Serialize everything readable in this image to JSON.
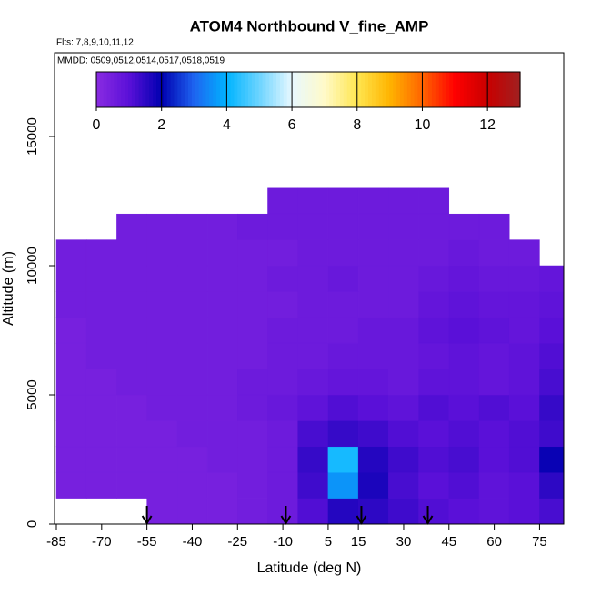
{
  "chart_data": {
    "type": "heatmap",
    "title": "ATOM4 Northbound V_fine_AMP",
    "subtitle": [
      "Flts: 7,8,9,10,11,12",
      "MMDD: 0509,0512,0514,0517,0518,0519"
    ],
    "x_label": "Latitude (deg N)",
    "y_label": "Altitude (m)",
    "xlim": [
      -85.6,
      83
    ],
    "ylim": [
      0,
      18240
    ],
    "xticks": [
      -85,
      -70,
      -55,
      -40,
      -25,
      -10,
      5,
      15,
      30,
      45,
      60,
      75
    ],
    "yticks": [
      0,
      5000,
      10000,
      15000
    ],
    "x_edges": [
      -85,
      -75,
      -65,
      -55,
      -45,
      -35,
      -25,
      -15,
      -5,
      5,
      15,
      25,
      35,
      45,
      55,
      65,
      75,
      83
    ],
    "y_edges": [
      0,
      1000,
      2000,
      3000,
      4000,
      5000,
      6000,
      7000,
      8000,
      9000,
      10000,
      11000,
      12000,
      13000
    ],
    "z": [
      [
        null,
        null,
        null,
        0.4,
        0.4,
        0.4,
        0.5,
        0.6,
        1.1,
        1.6,
        1.5,
        1.3,
        1.1,
        1.0,
        0.9,
        1.0,
        1.2
      ],
      [
        0.4,
        0.4,
        0.4,
        0.4,
        0.4,
        0.4,
        0.5,
        0.6,
        1.3,
        3.6,
        1.7,
        1.2,
        1.0,
        1.1,
        0.9,
        1.0,
        1.5
      ],
      [
        0.4,
        0.4,
        0.4,
        0.4,
        0.4,
        0.5,
        0.5,
        0.6,
        1.4,
        4.2,
        1.6,
        1.3,
        1.1,
        1.2,
        1.0,
        1.1,
        1.9
      ],
      [
        0.4,
        0.4,
        0.4,
        0.4,
        0.5,
        0.5,
        0.5,
        0.6,
        1.2,
        1.4,
        1.3,
        1.1,
        1.0,
        1.1,
        1.0,
        1.1,
        1.3
      ],
      [
        0.4,
        0.4,
        0.4,
        0.5,
        0.5,
        0.5,
        0.6,
        0.7,
        0.9,
        1.1,
        1.0,
        0.9,
        1.1,
        1.0,
        1.1,
        1.0,
        1.4
      ],
      [
        0.4,
        0.4,
        0.5,
        0.5,
        0.5,
        0.5,
        0.6,
        0.6,
        0.7,
        0.8,
        0.8,
        0.7,
        0.9,
        0.9,
        0.8,
        0.9,
        1.2
      ],
      [
        0.4,
        0.5,
        0.5,
        0.5,
        0.5,
        0.5,
        0.5,
        0.6,
        0.6,
        0.7,
        0.7,
        0.7,
        0.8,
        0.9,
        0.8,
        0.9,
        1.1
      ],
      [
        0.4,
        0.5,
        0.5,
        0.5,
        0.5,
        0.5,
        0.5,
        0.6,
        0.6,
        0.6,
        0.7,
        0.7,
        0.9,
        1.0,
        0.9,
        0.8,
        1.0
      ],
      [
        0.5,
        0.5,
        0.5,
        0.5,
        0.5,
        0.5,
        0.5,
        0.5,
        0.6,
        0.6,
        0.6,
        0.6,
        0.8,
        0.9,
        0.8,
        0.8,
        0.9
      ],
      [
        0.5,
        0.5,
        0.5,
        0.5,
        0.5,
        0.5,
        0.5,
        0.6,
        0.6,
        0.7,
        0.6,
        0.6,
        0.7,
        0.8,
        0.7,
        0.7,
        0.8
      ],
      [
        0.5,
        0.5,
        0.5,
        0.5,
        0.5,
        0.5,
        0.5,
        0.5,
        0.6,
        0.6,
        0.6,
        0.6,
        0.6,
        0.7,
        0.6,
        0.6,
        null
      ],
      [
        null,
        null,
        0.5,
        0.5,
        0.5,
        0.5,
        0.6,
        0.6,
        0.6,
        0.6,
        0.6,
        0.6,
        0.6,
        0.6,
        0.6,
        null,
        null
      ],
      [
        null,
        null,
        null,
        null,
        null,
        null,
        null,
        0.6,
        0.6,
        0.6,
        0.6,
        0.6,
        0.6,
        null,
        null,
        null,
        null
      ]
    ],
    "colorbar": {
      "range": [
        0,
        13
      ],
      "ticks": [
        0,
        2,
        4,
        6,
        8,
        10,
        12
      ],
      "colors": [
        "#8a2be2",
        "#5a10d8",
        "#0000b0",
        "#1e64f0",
        "#00b4ff",
        "#6cd4ff",
        "#e8f8ff",
        "#fffac8",
        "#ffe650",
        "#ffb400",
        "#ff6400",
        "#ff0000",
        "#c80000",
        "#a02020"
      ]
    },
    "arrows_x": [
      -55,
      -9,
      16,
      38
    ]
  }
}
